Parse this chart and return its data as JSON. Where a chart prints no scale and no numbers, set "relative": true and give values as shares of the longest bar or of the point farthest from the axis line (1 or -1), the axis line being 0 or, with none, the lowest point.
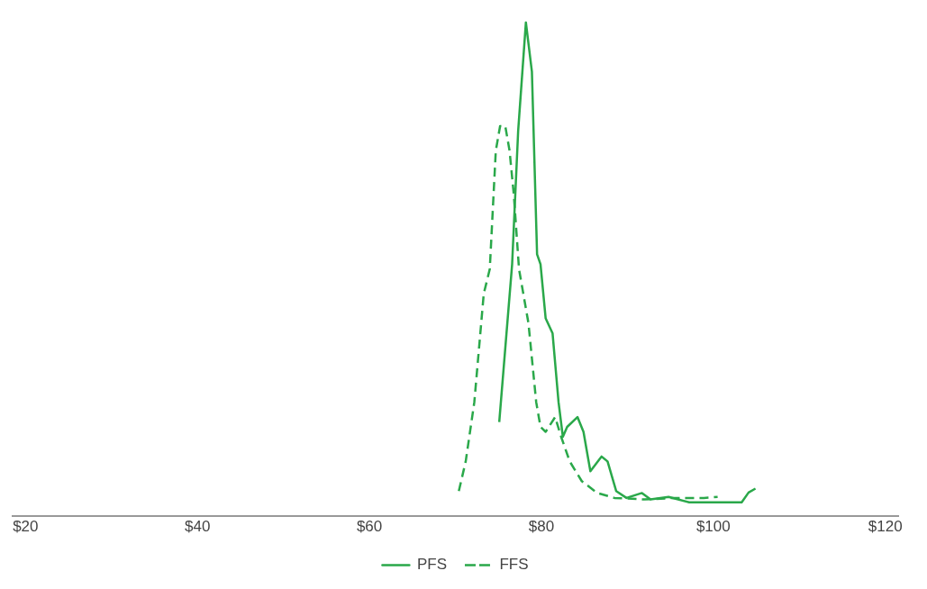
{
  "chart_data": {
    "type": "line",
    "relative": true,
    "xlim": [
      18.5,
      121.5
    ],
    "xticks": [
      {
        "value": 20,
        "label": "$20"
      },
      {
        "value": 40,
        "label": "$40"
      },
      {
        "value": 60,
        "label": "$60"
      },
      {
        "value": 80,
        "label": "$80"
      },
      {
        "value": 100,
        "label": "$100"
      },
      {
        "value": 120,
        "label": "$120"
      }
    ],
    "grid": false,
    "legend": "bottom",
    "marker": "none",
    "series": [
      {
        "name": "PFS",
        "color": "#2aa84a",
        "line_style": "solid",
        "x": [
          75.1,
          76.6,
          77.3,
          78.2,
          78.9,
          79.5,
          79.9,
          80.5,
          81.3,
          82.0,
          82.5,
          83.0,
          84.2,
          84.9,
          85.7,
          87.0,
          87.7,
          88.7,
          89.9,
          91.7,
          92.7,
          94.8,
          97.2,
          103.3,
          104.1,
          104.9
        ],
        "values": [
          0.19,
          0.51,
          0.78,
          1.0,
          0.9,
          0.53,
          0.51,
          0.4,
          0.37,
          0.23,
          0.16,
          0.18,
          0.2,
          0.17,
          0.09,
          0.12,
          0.11,
          0.05,
          0.036,
          0.046,
          0.033,
          0.038,
          0.027,
          0.027,
          0.047,
          0.055
        ]
      },
      {
        "name": "FFS",
        "color": "#2aa84a",
        "line_style": "dashed",
        "x": [
          70.4,
          71.2,
          72.2,
          73.3,
          74.0,
          74.7,
          75.2,
          75.8,
          76.3,
          76.8,
          77.4,
          78.5,
          79.4,
          79.9,
          80.5,
          81.6,
          82.3,
          83.3,
          84.7,
          86.5,
          88.5,
          92.0,
          95.5,
          98.9,
          100.5
        ],
        "values": [
          0.05,
          0.11,
          0.23,
          0.45,
          0.5,
          0.74,
          0.79,
          0.79,
          0.74,
          0.65,
          0.5,
          0.39,
          0.23,
          0.18,
          0.17,
          0.2,
          0.16,
          0.11,
          0.07,
          0.046,
          0.036,
          0.033,
          0.036,
          0.036,
          0.038
        ]
      }
    ]
  }
}
